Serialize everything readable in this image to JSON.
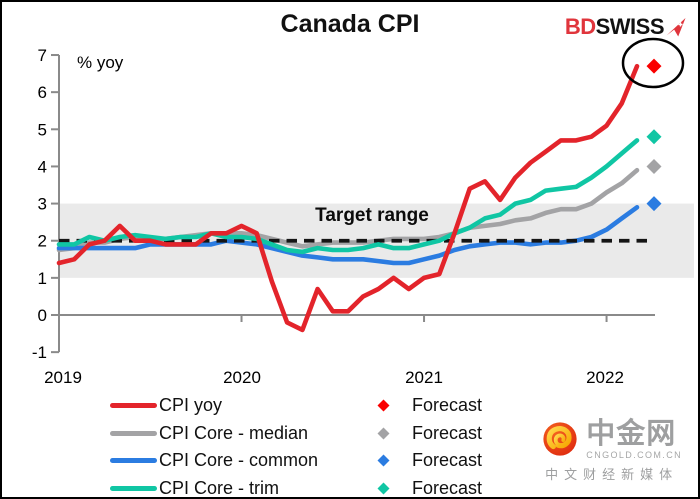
{
  "header": {
    "title": "Canada CPI",
    "logo": {
      "part1": "BD",
      "part2": "SWISS"
    }
  },
  "chart_data": {
    "type": "line",
    "title": "Canada CPI",
    "ylabel": "% yoy",
    "ylim": [
      -1,
      7
    ],
    "y_ticks": [
      7,
      6,
      5,
      4,
      3,
      2,
      1,
      0,
      -1
    ],
    "x_tick_labels": [
      "2019",
      "2020",
      "2021",
      "2022"
    ],
    "x_start": "2019-01",
    "x_freq": "monthly",
    "forecast_x": "2022-04",
    "grid": false,
    "legend_position": "bottom",
    "forecast_label": "Forecast",
    "target_range": [
      1,
      3
    ],
    "target_range_label": "Target range",
    "target_midline": 2,
    "highlight": "ellipse around CPI yoy latest value and forecast",
    "colors": {
      "band": "#eaeaea",
      "axis": "#8a8a8a",
      "dashed": "#151515",
      "ellipse": "#000000"
    },
    "series": [
      {
        "name": "CPI yoy",
        "color": "#e3242b",
        "forecast_color": "#fa0000",
        "forecast": 6.7,
        "values": [
          1.4,
          1.5,
          1.9,
          2.0,
          2.4,
          2.0,
          2.0,
          1.9,
          1.9,
          1.9,
          2.2,
          2.2,
          2.4,
          2.2,
          0.9,
          -0.2,
          -0.4,
          0.7,
          0.1,
          0.1,
          0.5,
          0.7,
          1.0,
          0.7,
          1.0,
          1.1,
          2.2,
          3.4,
          3.6,
          3.1,
          3.7,
          4.1,
          4.4,
          4.7,
          4.7,
          4.8,
          5.1,
          5.7,
          6.7
        ]
      },
      {
        "name": "CPI Core - median",
        "color": "#a3a3a5",
        "forecast_color": "#a3a3a5",
        "forecast": 4.0,
        "values": [
          1.75,
          1.8,
          1.95,
          1.95,
          2.05,
          2.1,
          2.05,
          2.05,
          2.1,
          2.15,
          2.2,
          2.2,
          2.2,
          2.15,
          2.05,
          1.95,
          1.85,
          1.9,
          1.95,
          1.95,
          1.95,
          2.0,
          2.05,
          2.05,
          2.05,
          2.1,
          2.2,
          2.35,
          2.4,
          2.45,
          2.55,
          2.6,
          2.75,
          2.85,
          2.85,
          3.0,
          3.3,
          3.55,
          3.9
        ]
      },
      {
        "name": "CPI Core - common",
        "color": "#2b7ce1",
        "forecast_color": "#2b7ce1",
        "forecast": 3.0,
        "values": [
          1.8,
          1.8,
          1.8,
          1.8,
          1.8,
          1.8,
          1.9,
          1.9,
          1.9,
          1.9,
          1.9,
          2.0,
          1.95,
          1.9,
          1.8,
          1.7,
          1.6,
          1.55,
          1.5,
          1.5,
          1.5,
          1.45,
          1.4,
          1.4,
          1.5,
          1.6,
          1.75,
          1.85,
          1.9,
          1.95,
          1.95,
          1.9,
          1.95,
          1.95,
          2.0,
          2.1,
          2.3,
          2.6,
          2.9
        ]
      },
      {
        "name": "CPI Core - trim",
        "color": "#10c6a4",
        "forecast_color": "#10c6a4",
        "forecast": 4.8,
        "values": [
          1.9,
          1.9,
          2.1,
          2.0,
          2.1,
          2.15,
          2.1,
          2.05,
          2.1,
          2.1,
          2.2,
          2.1,
          2.1,
          2.05,
          1.9,
          1.75,
          1.7,
          1.8,
          1.75,
          1.75,
          1.8,
          1.9,
          1.8,
          1.8,
          1.9,
          2.0,
          2.2,
          2.35,
          2.6,
          2.7,
          3.0,
          3.1,
          3.35,
          3.4,
          3.45,
          3.7,
          4.0,
          4.35,
          4.7
        ]
      }
    ]
  },
  "watermark": {
    "name": "中金网",
    "site": "CNGOLD.COM.CN",
    "slogan": "中文财经新媒体"
  }
}
